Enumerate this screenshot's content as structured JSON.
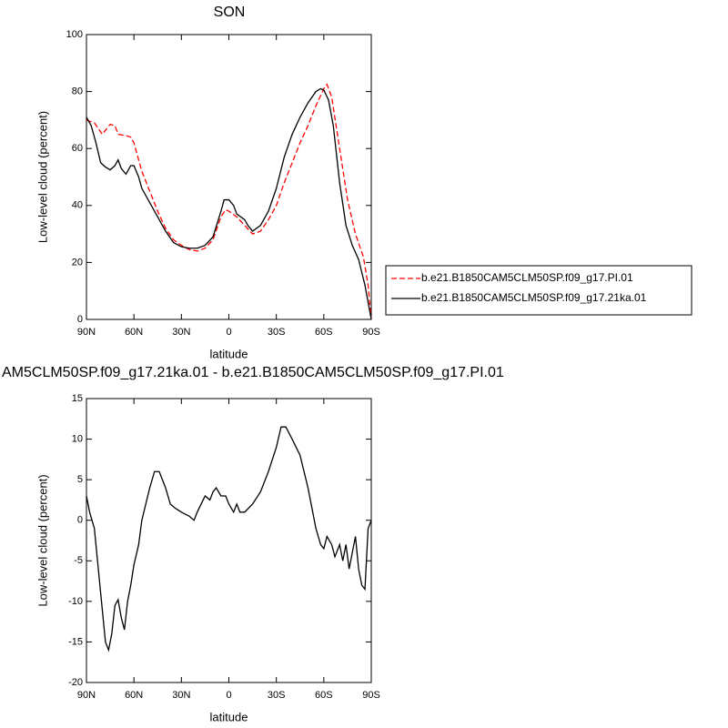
{
  "chart_data": [
    {
      "type": "line",
      "title": "SON",
      "x_label": "latitude",
      "y_label": "Low-level cloud (percent)",
      "xlim": [
        90,
        -90
      ],
      "xticks": [
        {
          "value": 90,
          "label": "90N"
        },
        {
          "value": 60,
          "label": "60N"
        },
        {
          "value": 30,
          "label": "30N"
        },
        0,
        {
          "value": -30,
          "label": "30S"
        },
        {
          "value": -60,
          "label": "60S"
        },
        {
          "value": -90,
          "label": "90S"
        }
      ],
      "ylim": [
        0,
        100
      ],
      "yticks": [
        0,
        20,
        40,
        60,
        80,
        100
      ],
      "legend": "right",
      "series": [
        {
          "name": "b.e21.B1850CAM5CLM50SP.f09_g17.PI.01",
          "color": "#ff0000",
          "dash": "dashed",
          "x": [
            90,
            85,
            80,
            75,
            72,
            70,
            65,
            62,
            60,
            55,
            50,
            45,
            40,
            35,
            30,
            25,
            20,
            15,
            10,
            5,
            2,
            0,
            -5,
            -10,
            -15,
            -20,
            -25,
            -30,
            -35,
            -40,
            -45,
            -50,
            -55,
            -60,
            -62,
            -65,
            -70,
            -75,
            -80,
            -85,
            -88,
            -90
          ],
          "values": [
            70,
            69,
            65,
            68.5,
            68,
            65,
            64.5,
            64,
            62,
            52,
            45,
            38,
            32,
            28,
            26,
            24.5,
            24,
            25,
            28,
            36,
            38.5,
            38,
            36,
            33,
            30,
            31,
            35,
            40,
            48,
            55,
            62,
            68,
            75,
            81,
            82.5,
            78,
            60,
            42,
            30,
            22,
            12,
            0
          ]
        },
        {
          "name": "b.e21.B1850CAM5CLM50SP.f09_g17.21ka.01",
          "color": "#000000",
          "dash": "solid",
          "x": [
            90,
            87,
            84,
            81,
            78,
            75,
            72,
            70,
            68,
            65,
            62,
            60,
            57,
            55,
            50,
            45,
            40,
            35,
            30,
            25,
            20,
            15,
            10,
            5,
            3,
            0,
            -3,
            -5,
            -10,
            -12,
            -15,
            -20,
            -25,
            -30,
            -35,
            -40,
            -45,
            -50,
            -55,
            -58,
            -60,
            -63,
            -66,
            -70,
            -74,
            -78,
            -82,
            -86,
            -88,
            -90
          ],
          "values": [
            71,
            68,
            62,
            55,
            53.5,
            52.5,
            54,
            56,
            53,
            51,
            54,
            54,
            50,
            46,
            41,
            36,
            31,
            27,
            25.5,
            25,
            25,
            26,
            29,
            38,
            42,
            42,
            40,
            37,
            35,
            33,
            31,
            33,
            38,
            46,
            57,
            65,
            71,
            76,
            80,
            81,
            80.5,
            77,
            68,
            48,
            33,
            26,
            21,
            12,
            6,
            0
          ]
        }
      ]
    },
    {
      "type": "line",
      "title": "AM5CLM50SP.f09_g17.21ka.01 - b.e21.B1850CAM5CLM50SP.f09_g17.PI.01",
      "x_label": "latitude",
      "y_label": "Low-level cloud (percent)",
      "xlim": [
        90,
        -90
      ],
      "xticks": [
        {
          "value": 90,
          "label": "90N"
        },
        {
          "value": 60,
          "label": "60N"
        },
        {
          "value": 30,
          "label": "30N"
        },
        0,
        {
          "value": -30,
          "label": "30S"
        },
        {
          "value": -60,
          "label": "60S"
        },
        {
          "value": -90,
          "label": "90S"
        }
      ],
      "ylim": [
        -20,
        15
      ],
      "yticks": [
        -20,
        -15,
        -10,
        -5,
        0,
        5,
        10,
        15
      ],
      "series": [
        {
          "color": "#000000",
          "dash": "solid",
          "x": [
            90,
            88,
            85,
            82,
            80,
            78,
            76,
            74,
            72,
            70,
            68,
            66,
            64,
            62,
            60,
            57,
            55,
            50,
            47,
            44,
            40,
            37,
            34,
            30,
            25,
            22,
            20,
            15,
            12,
            10,
            8,
            5,
            2,
            0,
            -3,
            -5,
            -7,
            -10,
            -15,
            -20,
            -25,
            -30,
            -33,
            -36,
            -40,
            -45,
            -50,
            -55,
            -58,
            -60,
            -62,
            -65,
            -67,
            -70,
            -72,
            -74,
            -76,
            -78,
            -80,
            -82,
            -84,
            -86,
            -88,
            -90
          ],
          "values": [
            3,
            1,
            -1,
            -7,
            -11,
            -15,
            -16,
            -14,
            -10.5,
            -9.8,
            -12,
            -13.5,
            -10,
            -8,
            -5.5,
            -3,
            0,
            4,
            6,
            6,
            4,
            2,
            1.5,
            1,
            0.5,
            0,
            1,
            3,
            2.5,
            3.5,
            4,
            3,
            3,
            2,
            1,
            2,
            1,
            1,
            2,
            3.5,
            6,
            9,
            11.5,
            11.5,
            10,
            8,
            4,
            -1,
            -3,
            -3.5,
            -2,
            -3,
            -4.5,
            -3,
            -5,
            -3,
            -6,
            -4,
            -2,
            -6,
            -8,
            -8.5,
            -1,
            0
          ]
        }
      ]
    }
  ]
}
